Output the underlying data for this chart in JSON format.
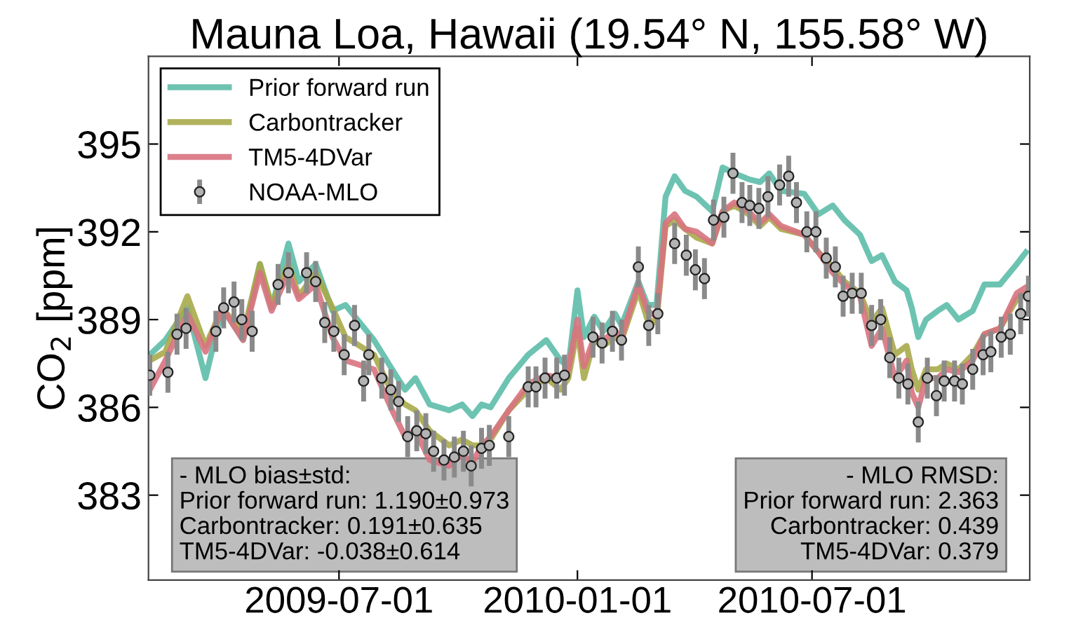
{
  "chart_data": {
    "type": "line",
    "title": "Mauna Loa, Hawaii (19.54° N, 155.58° W)",
    "ylabel": "CO$_{2}$ [ppm]",
    "x": [
      "2009-02-05",
      "2009-02-17",
      "2009-03-06",
      "2009-03-20",
      "2009-04-02",
      "2009-04-18",
      "2009-05-01",
      "2009-05-10",
      "2009-05-23",
      "2009-05-31",
      "2009-06-13",
      "2009-06-26",
      "2009-07-06",
      "2009-07-28",
      "2009-08-11",
      "2009-08-21",
      "2009-08-29",
      "2009-09-09",
      "2009-09-24",
      "2009-10-04",
      "2009-10-12",
      "2009-10-19",
      "2009-10-26",
      "2009-11-09",
      "2009-11-24",
      "2009-12-08",
      "2009-12-19",
      "2009-12-25",
      "2010-01-01",
      "2010-01-06",
      "2010-01-14",
      "2010-01-21",
      "2010-01-30",
      "2010-02-04",
      "2010-02-17",
      "2010-02-24",
      "2010-03-03",
      "2010-03-10",
      "2010-03-17",
      "2010-03-25",
      "2010-04-03",
      "2010-04-15",
      "2010-04-23",
      "2010-05-02",
      "2010-05-13",
      "2010-05-22",
      "2010-05-29",
      "2010-06-07",
      "2010-06-25",
      "2010-07-06",
      "2010-07-17",
      "2010-07-26",
      "2010-08-07",
      "2010-08-16",
      "2010-08-24",
      "2010-09-03",
      "2010-09-12",
      "2010-09-16",
      "2010-09-21",
      "2010-09-27",
      "2010-10-06",
      "2010-10-13",
      "2010-10-22",
      "2010-11-02",
      "2010-11-11",
      "2010-11-23",
      "2010-12-06",
      "2010-12-13"
    ],
    "series": [
      {
        "name": "Prior forward run",
        "color": "#5dbca9",
        "values": [
          387.8,
          388.3,
          389.4,
          387.0,
          389.4,
          388.3,
          390.9,
          389.4,
          391.6,
          390.3,
          390.9,
          389.3,
          389.5,
          388.3,
          387.3,
          386.6,
          387.0,
          386.1,
          385.9,
          386.1,
          385.7,
          386.1,
          386.0,
          387.0,
          387.8,
          388.3,
          387.6,
          387.4,
          390.0,
          388.4,
          389.1,
          388.6,
          389.2,
          388.8,
          390.3,
          389.5,
          389.5,
          393.2,
          393.9,
          393.4,
          393.2,
          392.7,
          394.2,
          394.0,
          393.8,
          393.7,
          394.0,
          393.4,
          393.3,
          392.6,
          392.9,
          392.4,
          391.9,
          391.0,
          391.2,
          390.3,
          390.0,
          389.4,
          388.4,
          389.0,
          389.3,
          389.5,
          389.0,
          389.3,
          390.2,
          390.2,
          390.9,
          391.3
        ]
      },
      {
        "name": "Carbontracker",
        "color": "#a9aa4a",
        "values": [
          387.6,
          387.9,
          389.8,
          388.1,
          389.4,
          388.5,
          390.9,
          389.5,
          390.9,
          389.8,
          390.6,
          389.4,
          388.4,
          387.8,
          386.5,
          386.1,
          385.9,
          385.2,
          384.7,
          384.9,
          384.7,
          384.7,
          384.9,
          385.9,
          386.6,
          387.0,
          386.6,
          387.0,
          388.7,
          387.0,
          388.3,
          388.1,
          388.4,
          388.3,
          390.0,
          389.0,
          388.9,
          392.2,
          392.4,
          392.1,
          391.8,
          391.6,
          392.7,
          392.9,
          392.6,
          392.2,
          392.5,
          392.1,
          391.9,
          391.3,
          390.8,
          390.3,
          389.9,
          388.9,
          389.4,
          387.8,
          388.1,
          387.3,
          386.6,
          387.3,
          387.3,
          387.5,
          387.3,
          387.8,
          388.5,
          388.7,
          389.7,
          389.9
        ]
      },
      {
        "name": "TM5-4DVar",
        "color": "#d8737f",
        "values": [
          386.6,
          387.6,
          389.2,
          387.9,
          389.4,
          388.3,
          390.6,
          389.3,
          390.6,
          389.7,
          390.2,
          388.4,
          387.6,
          387.3,
          385.9,
          385.0,
          385.2,
          384.2,
          384.0,
          384.4,
          384.1,
          384.7,
          385.0,
          385.9,
          386.8,
          387.1,
          387.0,
          387.3,
          389.0,
          387.4,
          388.4,
          388.3,
          388.6,
          388.4,
          390.2,
          389.3,
          389.1,
          392.3,
          392.6,
          392.1,
          392.0,
          391.6,
          392.7,
          393.0,
          392.7,
          392.3,
          392.6,
          392.2,
          391.9,
          391.3,
          390.6,
          390.2,
          389.8,
          388.1,
          388.7,
          387.0,
          387.6,
          386.5,
          386.0,
          387.0,
          387.0,
          387.3,
          387.2,
          387.6,
          388.5,
          388.7,
          389.9,
          390.1
        ]
      },
      {
        "name": "NOAA-MLO",
        "type": "scatter",
        "marker": "circle",
        "color": "#b3b3b3",
        "x": [
          "2009-02-05",
          "2009-02-19",
          "2009-02-26",
          "2009-03-05",
          "2009-03-28",
          "2009-04-03",
          "2009-04-11",
          "2009-04-17",
          "2009-04-25",
          "2009-05-15",
          "2009-05-23",
          "2009-06-06",
          "2009-06-13",
          "2009-06-20",
          "2009-06-27",
          "2009-07-05",
          "2009-07-13",
          "2009-07-20",
          "2009-07-24",
          "2009-08-03",
          "2009-08-10",
          "2009-08-16",
          "2009-08-23",
          "2009-08-30",
          "2009-09-06",
          "2009-09-12",
          "2009-09-20",
          "2009-09-28",
          "2009-10-05",
          "2009-10-11",
          "2009-10-19",
          "2009-10-25",
          "2009-11-09",
          "2009-11-24",
          "2009-11-30",
          "2009-12-07",
          "2009-12-16",
          "2009-12-22",
          "2010-01-13",
          "2010-01-20",
          "2010-01-28",
          "2010-02-04",
          "2010-02-17",
          "2010-02-25",
          "2010-03-04",
          "2010-03-17",
          "2010-03-26",
          "2010-04-02",
          "2010-04-09",
          "2010-04-16",
          "2010-04-24",
          "2010-05-01",
          "2010-05-08",
          "2010-05-14",
          "2010-05-21",
          "2010-05-28",
          "2010-06-06",
          "2010-06-13",
          "2010-06-19",
          "2010-06-27",
          "2010-07-04",
          "2010-07-12",
          "2010-07-19",
          "2010-07-25",
          "2010-08-01",
          "2010-08-08",
          "2010-08-16",
          "2010-08-23",
          "2010-08-30",
          "2010-09-06",
          "2010-09-13",
          "2010-09-21",
          "2010-09-28",
          "2010-10-05",
          "2010-10-11",
          "2010-10-19",
          "2010-10-25",
          "2010-11-02",
          "2010-11-10",
          "2010-11-16",
          "2010-11-24",
          "2010-12-01",
          "2010-12-09",
          "2010-12-15"
        ],
        "values": [
          387.1,
          387.2,
          388.5,
          388.7,
          388.6,
          389.4,
          389.6,
          389.0,
          388.6,
          390.2,
          390.6,
          390.6,
          390.3,
          388.9,
          388.6,
          387.8,
          388.8,
          386.9,
          387.8,
          387.0,
          386.6,
          386.2,
          385.0,
          385.2,
          385.1,
          384.5,
          384.2,
          384.3,
          384.5,
          384.0,
          384.6,
          384.7,
          385.0,
          386.7,
          386.7,
          387.0,
          387.0,
          387.1,
          388.4,
          388.2,
          388.6,
          388.3,
          390.8,
          388.8,
          389.2,
          391.6,
          391.2,
          390.7,
          390.4,
          392.4,
          392.5,
          394.0,
          393.0,
          392.9,
          392.8,
          393.2,
          393.6,
          393.9,
          393.0,
          392.0,
          392.0,
          391.1,
          390.8,
          389.8,
          389.9,
          389.9,
          388.8,
          389.0,
          387.7,
          387.0,
          386.8,
          385.5,
          387.0,
          386.4,
          386.9,
          386.9,
          386.8,
          387.3,
          387.8,
          387.9,
          388.4,
          388.5,
          389.2,
          389.8
        ],
        "errors": [
          0.7,
          0.7,
          0.7,
          0.7,
          0.7,
          0.7,
          0.7,
          0.7,
          0.7,
          0.7,
          0.7,
          0.7,
          0.7,
          0.7,
          0.7,
          0.7,
          0.7,
          0.7,
          0.7,
          0.7,
          0.7,
          0.7,
          0.7,
          0.7,
          0.7,
          0.7,
          0.7,
          0.7,
          0.7,
          0.7,
          0.7,
          0.7,
          0.7,
          0.7,
          0.7,
          0.7,
          0.7,
          0.7,
          0.7,
          0.7,
          0.7,
          0.7,
          0.7,
          0.7,
          0.7,
          0.7,
          0.7,
          0.7,
          0.7,
          0.7,
          0.7,
          0.7,
          0.7,
          0.7,
          0.7,
          0.7,
          0.7,
          0.7,
          0.7,
          0.7,
          0.7,
          0.7,
          0.7,
          0.7,
          0.7,
          0.7,
          0.7,
          0.7,
          0.7,
          0.7,
          0.7,
          0.7,
          0.7,
          0.7,
          0.7,
          0.7,
          0.7,
          0.7,
          0.7,
          0.7,
          0.7,
          0.7,
          0.7,
          0.7
        ]
      }
    ],
    "xlim": [
      "2009-02-04",
      "2010-12-16"
    ],
    "xticks": [
      "2009-07-01",
      "2010-01-01",
      "2010-07-01"
    ],
    "ylim": [
      380.1,
      398
    ],
    "yticks": [
      383,
      386,
      389,
      392,
      395
    ],
    "grid": false,
    "legend": "top left",
    "annotations": [
      "- MLO bias±std:\nPrior forward run: 1.190±0.973\nCarbontracker: 0.191±0.635\nTM5-4DVar: -0.038±0.614",
      "- MLO RMSD:\nPrior forward run: 2.363\nCarbontracker: 0.439\nTM5-4DVar: 0.379"
    ]
  }
}
